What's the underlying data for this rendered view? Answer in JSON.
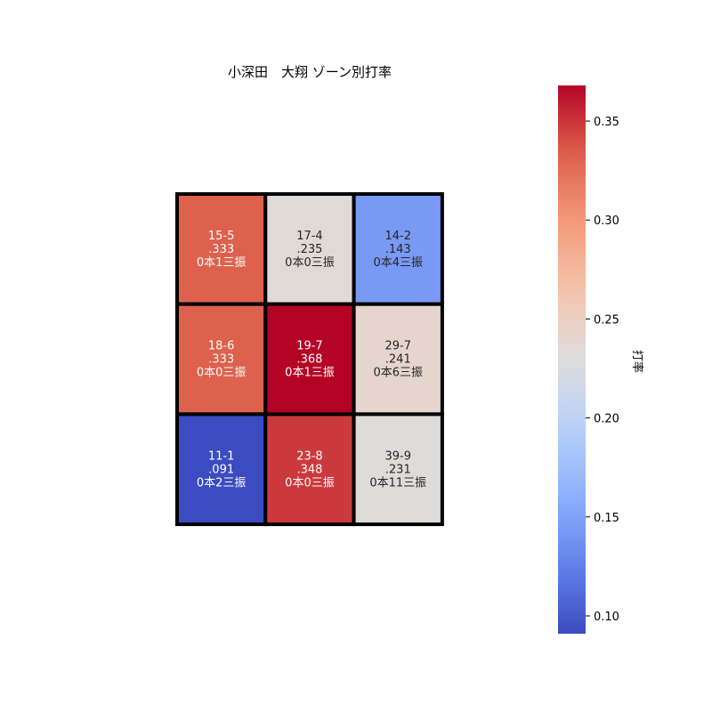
{
  "chart_data": {
    "type": "heatmap",
    "title": "小深田　大翔 ゾーン別打率",
    "colorbar_label": "打率",
    "colorbar_range": [
      0.091,
      0.368
    ],
    "colorbar_ticks": [
      "0.10",
      "0.15",
      "0.20",
      "0.25",
      "0.30",
      "0.35"
    ],
    "colorbar_tick_values": [
      0.1,
      0.15,
      0.2,
      0.25,
      0.3,
      0.35
    ],
    "grid": {
      "rows": 3,
      "cols": 3
    },
    "cells": [
      {
        "row": 0,
        "col": 0,
        "value": 0.333,
        "record": "15-5",
        "avg": ".333",
        "detail": "0本1三振"
      },
      {
        "row": 0,
        "col": 1,
        "value": 0.235,
        "record": "17-4",
        "avg": ".235",
        "detail": "0本0三振"
      },
      {
        "row": 0,
        "col": 2,
        "value": 0.143,
        "record": "14-2",
        "avg": ".143",
        "detail": "0本4三振"
      },
      {
        "row": 1,
        "col": 0,
        "value": 0.333,
        "record": "18-6",
        "avg": ".333",
        "detail": "0本0三振"
      },
      {
        "row": 1,
        "col": 1,
        "value": 0.368,
        "record": "19-7",
        "avg": ".368",
        "detail": "0本1三振"
      },
      {
        "row": 1,
        "col": 2,
        "value": 0.241,
        "record": "29-7",
        "avg": ".241",
        "detail": "0本6三振"
      },
      {
        "row": 2,
        "col": 0,
        "value": 0.091,
        "record": "11-1",
        "avg": ".091",
        "detail": "0本2三振"
      },
      {
        "row": 2,
        "col": 1,
        "value": 0.348,
        "record": "23-8",
        "avg": ".348",
        "detail": "0本0三振"
      },
      {
        "row": 2,
        "col": 2,
        "value": 0.231,
        "record": "39-9",
        "avg": ".231",
        "detail": "0本11三振"
      }
    ],
    "colormap": "coolwarm"
  }
}
